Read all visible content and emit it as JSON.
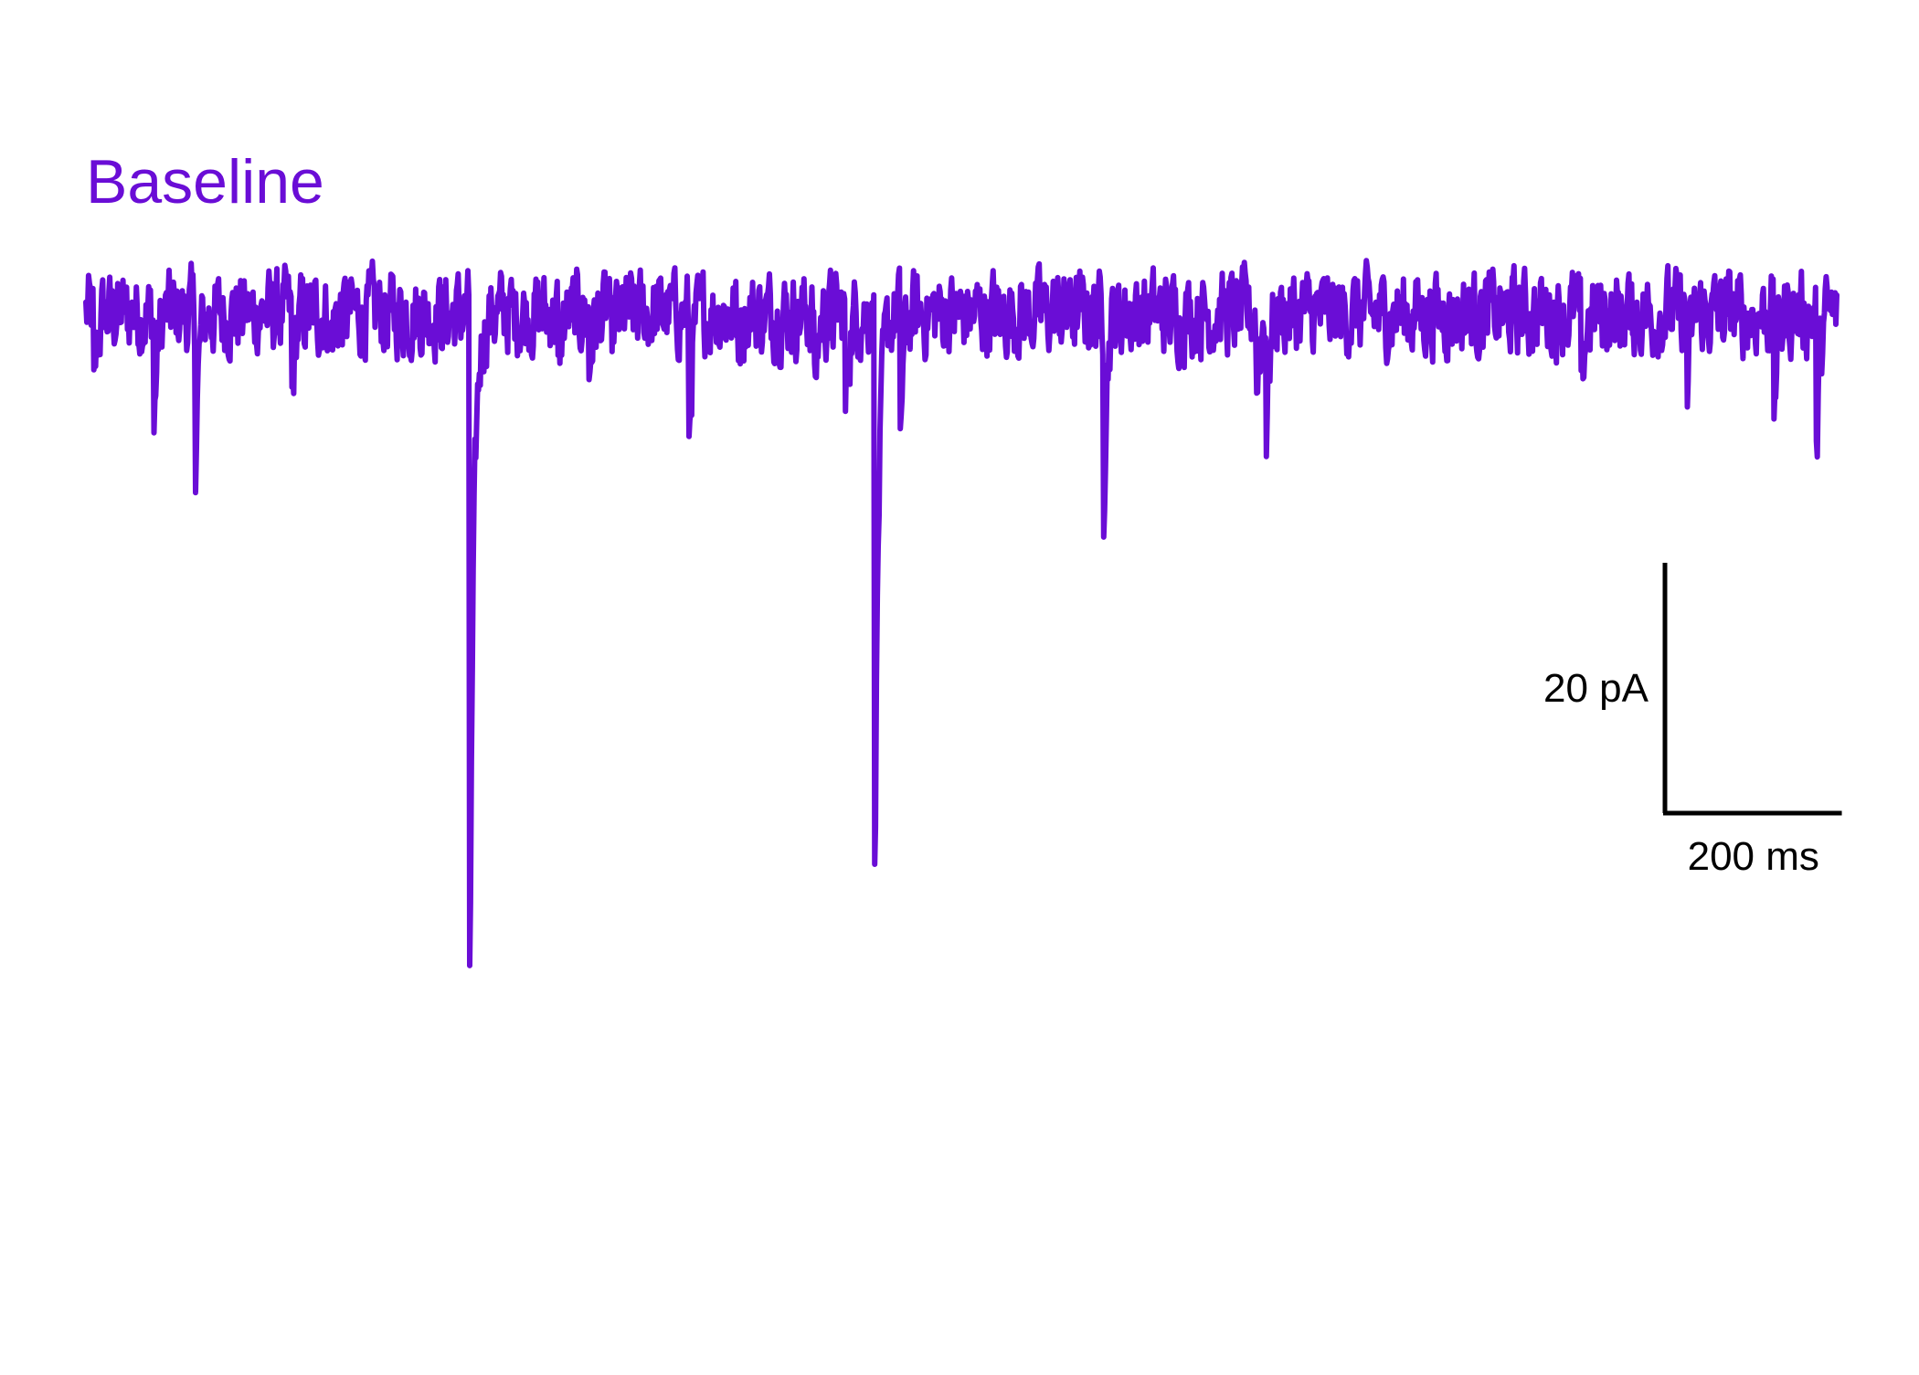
{
  "title": "Baseline",
  "colors": {
    "trace": "#6a0dd6",
    "scale_bar": "#000000"
  },
  "chart_data": {
    "type": "line",
    "title": "Baseline",
    "xlabel": "",
    "ylabel": "",
    "grid": false,
    "axes_visible": false,
    "x_unit": "ms",
    "y_unit": "pA",
    "xlim": [
      0,
      1980
    ],
    "ylim": [
      -76,
      6
    ],
    "baseline": 0,
    "noise_amplitude": 2.6,
    "events": [
      {
        "t": 8,
        "amp": -11.5
      },
      {
        "t": 76,
        "amp": -14.8
      },
      {
        "t": 123,
        "amp": -18.5
      },
      {
        "t": 232,
        "amp": -11.4
      },
      {
        "t": 274,
        "amp": -5.1
      },
      {
        "t": 433,
        "amp": -76.5
      },
      {
        "t": 533,
        "amp": -8.3
      },
      {
        "t": 568,
        "amp": -8.0
      },
      {
        "t": 592,
        "amp": -5.5
      },
      {
        "t": 681,
        "amp": -16.6
      },
      {
        "t": 735,
        "amp": -5.0
      },
      {
        "t": 823,
        "amp": -10.8
      },
      {
        "t": 858,
        "amp": -12.5
      },
      {
        "t": 891,
        "amp": -61.5
      },
      {
        "t": 920,
        "amp": -15.5
      },
      {
        "t": 1150,
        "amp": -22.0
      },
      {
        "t": 1323,
        "amp": -10.3
      },
      {
        "t": 1334,
        "amp": -14.6
      },
      {
        "t": 1690,
        "amp": -12.2
      },
      {
        "t": 1810,
        "amp": -10.0
      },
      {
        "t": 1908,
        "amp": -12.8
      },
      {
        "t": 1956,
        "amp": -19.5
      }
    ],
    "scale_bar": {
      "x_value": 200,
      "x_label": "200 ms",
      "y_value": 20,
      "y_label": "20 pA"
    }
  }
}
